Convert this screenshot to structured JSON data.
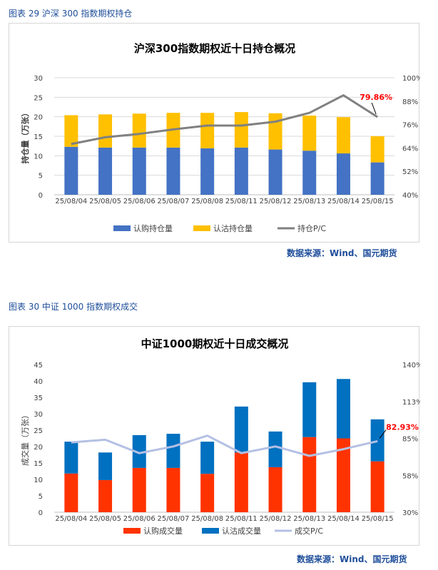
{
  "figures": [
    {
      "caption": "图表 29  沪深 300 指数期权持仓",
      "source": "数据来源：Wind、国元期货"
    },
    {
      "caption": "图表 30  中证 1000 指数期权成交",
      "source": "数据来源：Wind、国元期货"
    }
  ],
  "colors": {
    "blue": "#4472c4",
    "yellow": "#ffc000",
    "grey_line": "#808080",
    "red": "#ff3300",
    "deep_blue": "#0070c0",
    "lavender_line": "#b4c0e4",
    "annotation_red": "#ff0000",
    "caption_blue": "#1f4e9a"
  },
  "chart_data": [
    {
      "type": "bar",
      "stacked": true,
      "title": "沪深300指数期权近十日持仓概况",
      "ylabel": "持仓量（万张）",
      "ylim": [
        0,
        30
      ],
      "y_ticks": [
        "0",
        "5",
        "10",
        "15",
        "20",
        "25",
        "30"
      ],
      "y2lim": [
        40,
        100
      ],
      "y2_ticks": [
        "40%",
        "52%",
        "64%",
        "76%",
        "88%",
        "100%"
      ],
      "categories": [
        "25/08/04",
        "25/08/05",
        "25/08/06",
        "25/08/07",
        "25/08/08",
        "25/08/11",
        "25/08/12",
        "25/08/13",
        "25/08/14",
        "25/08/15"
      ],
      "series": [
        {
          "name": "认购持仓量",
          "kind": "bar",
          "axis": "left",
          "values": [
            12.3,
            12.1,
            12.1,
            12.1,
            11.9,
            12.1,
            11.6,
            11.3,
            10.6,
            8.3
          ]
        },
        {
          "name": "认沽持仓量",
          "kind": "bar",
          "axis": "left",
          "values": [
            8.1,
            8.5,
            8.7,
            8.9,
            9.1,
            9.1,
            9.3,
            9.0,
            9.3,
            6.7
          ]
        },
        {
          "name": "持仓P/C",
          "kind": "line",
          "axis": "right",
          "values": [
            66.0,
            69.5,
            71.2,
            73.5,
            75.5,
            75.5,
            77.5,
            82.0,
            91.0,
            79.86
          ]
        }
      ],
      "annotation": {
        "text": "79.86%",
        "index": 9
      },
      "legend_position": "bottom",
      "grid": true
    },
    {
      "type": "bar",
      "stacked": true,
      "title": "中证1000期权近十日成交概况",
      "ylabel": "成交量（万张）",
      "ylim": [
        0,
        45
      ],
      "y_ticks": [
        "0",
        "5",
        "10",
        "15",
        "20",
        "25",
        "30",
        "35",
        "40",
        "45"
      ],
      "y2lim": [
        30,
        140
      ],
      "y2_ticks": [
        "30%",
        "58%",
        "85%",
        "113%",
        "140%"
      ],
      "categories": [
        "25/08/04",
        "25/08/05",
        "25/08/06",
        "25/08/07",
        "25/08/08",
        "25/08/11",
        "25/08/12",
        "25/08/13",
        "25/08/14",
        "25/08/15"
      ],
      "series": [
        {
          "name": "认购成交量",
          "kind": "bar",
          "axis": "left",
          "values": [
            11.8,
            9.8,
            13.5,
            13.5,
            11.7,
            18.2,
            13.7,
            22.9,
            22.5,
            15.5
          ]
        },
        {
          "name": "认沽成交量",
          "kind": "bar",
          "axis": "left",
          "values": [
            9.7,
            8.4,
            10.0,
            10.4,
            9.8,
            14.0,
            10.9,
            16.7,
            18.1,
            12.8
          ]
        },
        {
          "name": "成交P/C",
          "kind": "line",
          "axis": "right",
          "values": [
            82.0,
            84.0,
            74.0,
            79.0,
            87.0,
            74.0,
            79.0,
            72.0,
            77.0,
            82.93
          ]
        }
      ],
      "annotation": {
        "text": "82.93%",
        "index": 9
      },
      "legend_position": "bottom",
      "grid": false
    }
  ]
}
